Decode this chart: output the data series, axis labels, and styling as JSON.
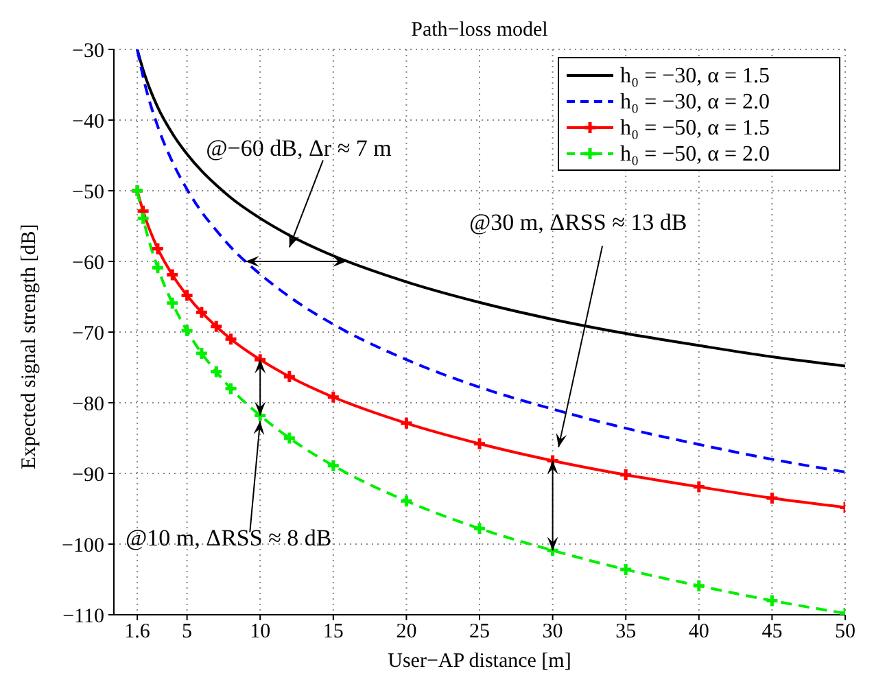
{
  "chart_data": {
    "type": "line",
    "title": "Path−loss model",
    "xlabel": "User−AP distance [m]",
    "ylabel": "Expected signal strength [dB]",
    "x": [
      1.6,
      2,
      3,
      4,
      5,
      6,
      7,
      8,
      10,
      12,
      15,
      20,
      25,
      30,
      35,
      40,
      45,
      50
    ],
    "series": [
      {
        "name": "h₀ = −30, α = 1.5",
        "color": "#000000",
        "line_style": "solid",
        "marker": "none",
        "values": [
          -30,
          -32.9,
          -38.2,
          -41.9,
          -44.8,
          -47.2,
          -49.2,
          -51.0,
          -53.9,
          -56.3,
          -59.2,
          -62.9,
          -65.8,
          -68.2,
          -70.2,
          -71.9,
          -73.5,
          -74.8
        ]
      },
      {
        "name": "h₀ = −30, α = 2.0",
        "color": "#0000ff",
        "line_style": "dashed",
        "marker": "none",
        "values": [
          -30,
          -33.9,
          -40.9,
          -45.9,
          -49.8,
          -53.0,
          -55.6,
          -58.0,
          -61.8,
          -65.0,
          -68.9,
          -73.9,
          -77.8,
          -80.9,
          -83.6,
          -85.9,
          -88.0,
          -89.8
        ]
      },
      {
        "name": "h₀ = −50, α = 1.5",
        "color": "#ff0000",
        "line_style": "solid",
        "marker": "cross",
        "values": [
          -50,
          -52.9,
          -58.2,
          -61.9,
          -64.8,
          -67.2,
          -69.2,
          -71.0,
          -73.9,
          -76.3,
          -79.2,
          -82.9,
          -85.8,
          -88.2,
          -90.2,
          -91.9,
          -93.5,
          -94.8
        ]
      },
      {
        "name": "h₀ = −50, α = 2.0",
        "color": "#00ee00",
        "line_style": "dashed",
        "marker": "cross",
        "values": [
          -50,
          -53.9,
          -60.9,
          -65.9,
          -69.8,
          -73.0,
          -75.6,
          -78.0,
          -81.8,
          -85.0,
          -88.9,
          -93.9,
          -97.8,
          -100.9,
          -103.6,
          -105.9,
          -108.0,
          -109.8
        ]
      }
    ],
    "xlim": [
      0,
      50
    ],
    "xticks": [
      1.6,
      5,
      10,
      15,
      20,
      25,
      30,
      35,
      40,
      45,
      50
    ],
    "ylim": [
      -110,
      -30
    ],
    "yticks": [
      -110,
      -100,
      -90,
      -80,
      -70,
      -60,
      -50,
      -40,
      -30
    ],
    "grid": true,
    "legend": "top right",
    "annotations": [
      "@−60 dB, Δr ≈ 7 m",
      "@30 m, ΔRSS ≈ 13 dB",
      {
        "text": "@10 m, ΔRSS ≈ 8 dB",
        "x": 10,
        "y": -81.8
      }
    ]
  }
}
